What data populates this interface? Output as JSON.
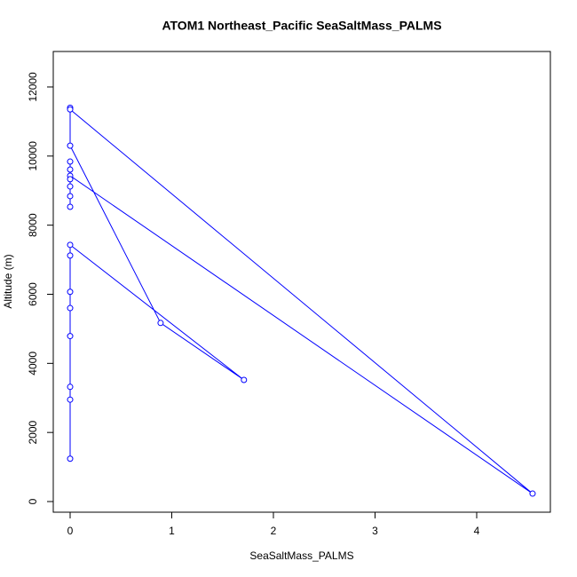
{
  "chart_data": {
    "type": "line",
    "title": "ATOM1 Northeast_Pacific SeaSaltMass_PALMS",
    "xlabel": "SeaSaltMass_PALMS",
    "ylabel": "Altitude (m)",
    "color": "#0000ff",
    "x": [
      0,
      0,
      0,
      0,
      0,
      0,
      0,
      0,
      1.71,
      0.89,
      0,
      0,
      0,
      4.55,
      0,
      0,
      0,
      0,
      0,
      0,
      0
    ],
    "values": [
      1240,
      2950,
      3320,
      4790,
      5600,
      6070,
      7120,
      7430,
      3520,
      5170,
      10300,
      11400,
      11350,
      230,
      9430,
      9120,
      8530,
      8840,
      9610,
      9840,
      9330
    ],
    "xlim": [
      -0.166,
      4.725
    ],
    "ylim": [
      -308,
      13027
    ],
    "xticks": [
      0,
      1,
      2,
      3,
      4
    ],
    "yticks": [
      0,
      2000,
      4000,
      6000,
      8000,
      10000,
      12000
    ]
  }
}
